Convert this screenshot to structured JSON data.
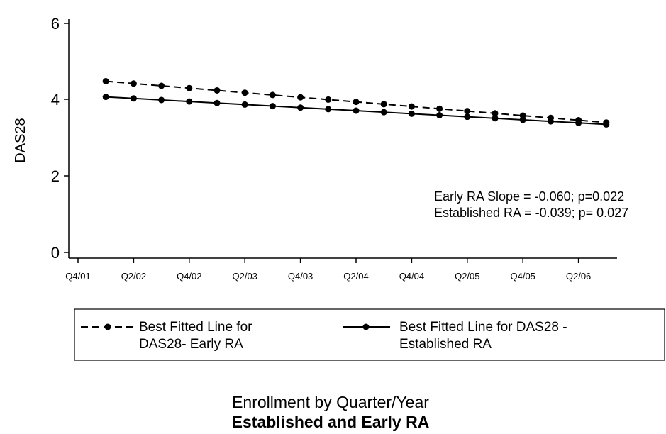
{
  "chart_data": {
    "type": "line",
    "title": "Established and Early RA",
    "xlabel": "Enrollment by Quarter/Year",
    "ylabel": "DAS28",
    "ylim": [
      0,
      6
    ],
    "yticks": [
      0,
      2,
      4,
      6
    ],
    "x_ticks": [
      "Q4/01",
      "Q2/02",
      "Q4/02",
      "Q2/03",
      "Q4/03",
      "Q2/04",
      "Q4/04",
      "Q2/05",
      "Q4/05",
      "Q2/06"
    ],
    "categories": [
      "Q1/02",
      "Q2/02",
      "Q3/02",
      "Q4/02",
      "Q1/03",
      "Q2/03",
      "Q3/03",
      "Q4/03",
      "Q1/04",
      "Q2/04",
      "Q3/04",
      "Q4/04",
      "Q1/05",
      "Q2/05",
      "Q3/05",
      "Q4/05",
      "Q1/06",
      "Q2/06",
      "Q3/06"
    ],
    "series": [
      {
        "name": "Best Fitted Line for DAS28- Early RA",
        "style": "dashed",
        "values": [
          4.48,
          4.42,
          4.36,
          4.3,
          4.24,
          4.18,
          4.12,
          4.06,
          4.0,
          3.94,
          3.88,
          3.82,
          3.76,
          3.7,
          3.64,
          3.58,
          3.52,
          3.46,
          3.4
        ]
      },
      {
        "name": "Best Fitted Line for DAS28 - Established RA",
        "style": "solid",
        "values": [
          4.07,
          4.03,
          3.99,
          3.95,
          3.91,
          3.87,
          3.83,
          3.79,
          3.75,
          3.71,
          3.67,
          3.63,
          3.59,
          3.55,
          3.51,
          3.47,
          3.43,
          3.39,
          3.35
        ]
      }
    ],
    "annotations": [
      "Early RA Slope = -0.060; p=0.022",
      "Established RA = -0.039; p= 0.027"
    ],
    "legend": {
      "placement": "bottom",
      "entries": [
        [
          "Best Fitted Line for",
          "DAS28- Early RA"
        ],
        [
          "Best Fitted Line for DAS28 -",
          "Established RA"
        ]
      ]
    },
    "grid": false,
    "line_color": "#000000"
  }
}
